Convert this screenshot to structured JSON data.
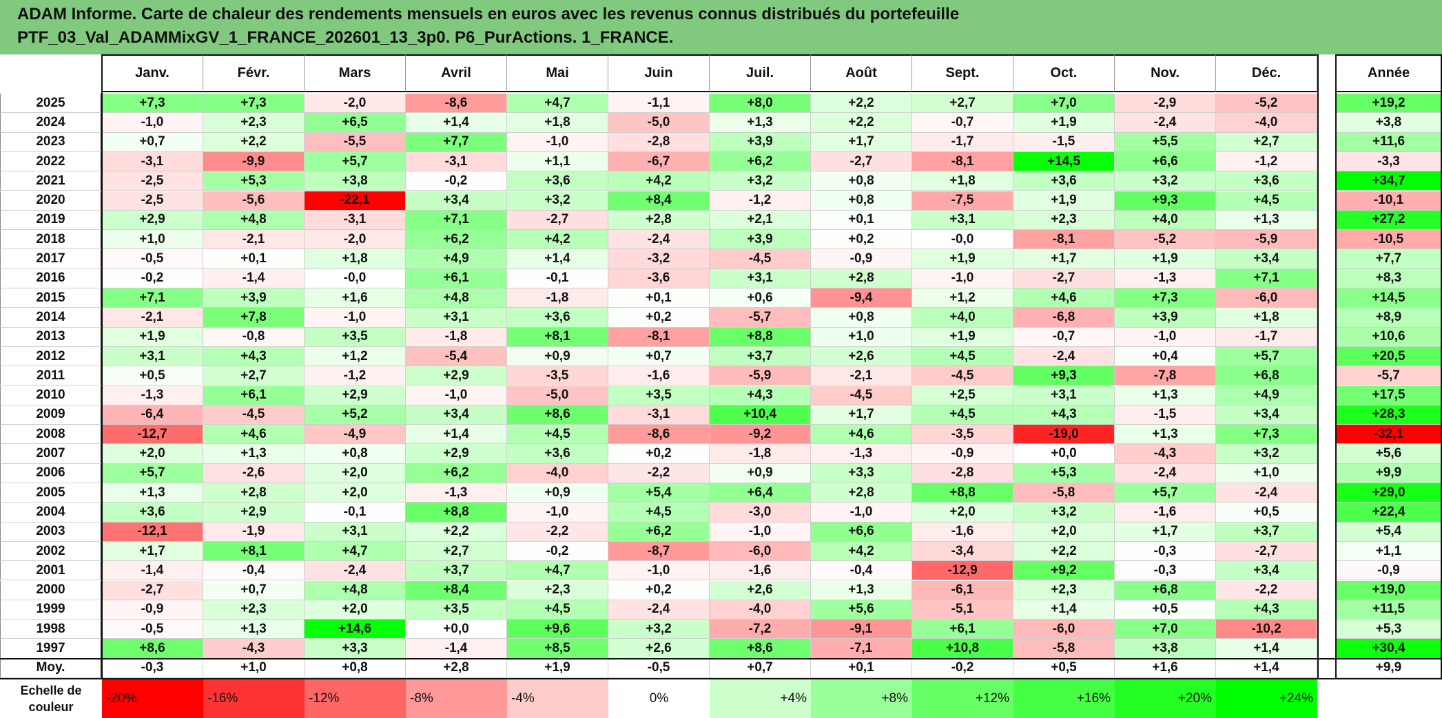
{
  "title": {
    "line1": "ADAM Informe. Carte de chaleur des rendements mensuels en euros avec les revenus connus distribués du portefeuille",
    "line2": "PTF_03_Val_ADAMMixGV_1_FRANCE_202601_13_3p0. P6_PurActions. 1_FRANCE."
  },
  "chart_data": {
    "type": "heatmap",
    "months": [
      "Janv.",
      "Févr.",
      "Mars",
      "Avril",
      "Mai",
      "Juin",
      "Juil.",
      "Août",
      "Sept.",
      "Oct.",
      "Nov.",
      "Déc."
    ],
    "year_header": "Année",
    "rows": [
      {
        "year": "2025",
        "m": [
          "+7,3",
          "+7,3",
          "-2,0",
          "-8,6",
          "+4,7",
          "-1,1",
          "+8,0",
          "+2,2",
          "+2,7",
          "+7,0",
          "-2,9",
          "-5,2"
        ],
        "total": "+19,2"
      },
      {
        "year": "2024",
        "m": [
          "-1,0",
          "+2,3",
          "+6,5",
          "+1,4",
          "+1,8",
          "-5,0",
          "+1,3",
          "+2,2",
          "-0,7",
          "+1,9",
          "-2,4",
          "-4,0"
        ],
        "total": "+3,8"
      },
      {
        "year": "2023",
        "m": [
          "+0,7",
          "+2,2",
          "-5,5",
          "+7,7",
          "-1,0",
          "-2,8",
          "+3,9",
          "+1,7",
          "-1,7",
          "-1,5",
          "+5,5",
          "+2,7"
        ],
        "total": "+11,6"
      },
      {
        "year": "2022",
        "m": [
          "-3,1",
          "-9,9",
          "+5,7",
          "-3,1",
          "+1,1",
          "-6,7",
          "+6,2",
          "-2,7",
          "-8,1",
          "+14,5",
          "+6,6",
          "-1,2"
        ],
        "total": "-3,3"
      },
      {
        "year": "2021",
        "m": [
          "-2,5",
          "+5,3",
          "+3,8",
          "-0,2",
          "+3,6",
          "+4,2",
          "+3,2",
          "+0,8",
          "+1,8",
          "+3,6",
          "+3,2",
          "+3,6"
        ],
        "total": "+34,7"
      },
      {
        "year": "2020",
        "m": [
          "-2,5",
          "-5,6",
          "-22,1",
          "+3,4",
          "+3,2",
          "+8,4",
          "-1,2",
          "+0,8",
          "-7,5",
          "+1,9",
          "+9,3",
          "+4,5"
        ],
        "total": "-10,1"
      },
      {
        "year": "2019",
        "m": [
          "+2,9",
          "+4,8",
          "-3,1",
          "+7,1",
          "-2,7",
          "+2,8",
          "+2,1",
          "+0,1",
          "+3,1",
          "+2,3",
          "+4,0",
          "+1,3"
        ],
        "total": "+27,2"
      },
      {
        "year": "2018",
        "m": [
          "+1,0",
          "-2,1",
          "-2,0",
          "+6,2",
          "+4,2",
          "-2,4",
          "+3,9",
          "+0,2",
          "-0,0",
          "-8,1",
          "-5,2",
          "-5,9"
        ],
        "total": "-10,5"
      },
      {
        "year": "2017",
        "m": [
          "-0,5",
          "+0,1",
          "+1,8",
          "+4,9",
          "+1,4",
          "-3,2",
          "-4,5",
          "-0,9",
          "+1,9",
          "+1,7",
          "+1,9",
          "+3,4"
        ],
        "total": "+7,7"
      },
      {
        "year": "2016",
        "m": [
          "-0,2",
          "-1,4",
          "-0,0",
          "+6,1",
          "-0,1",
          "-3,6",
          "+3,1",
          "+2,8",
          "-1,0",
          "-2,7",
          "-1,3",
          "+7,1"
        ],
        "total": "+8,3"
      },
      {
        "year": "2015",
        "m": [
          "+7,1",
          "+3,9",
          "+1,6",
          "+4,8",
          "-1,8",
          "+0,1",
          "+0,6",
          "-9,4",
          "+1,2",
          "+4,6",
          "+7,3",
          "-6,0"
        ],
        "total": "+14,5"
      },
      {
        "year": "2014",
        "m": [
          "-2,1",
          "+7,8",
          "-1,0",
          "+3,1",
          "+3,6",
          "+0,2",
          "-5,7",
          "+0,8",
          "+4,0",
          "-6,8",
          "+3,9",
          "+1,8"
        ],
        "total": "+8,9"
      },
      {
        "year": "2013",
        "m": [
          "+1,9",
          "-0,8",
          "+3,5",
          "-1,8",
          "+8,1",
          "-8,1",
          "+8,8",
          "+1,0",
          "+1,9",
          "-0,7",
          "-1,0",
          "-1,7"
        ],
        "total": "+10,6"
      },
      {
        "year": "2012",
        "m": [
          "+3,1",
          "+4,3",
          "+1,2",
          "-5,4",
          "+0,9",
          "+0,7",
          "+3,7",
          "+2,6",
          "+4,5",
          "-2,4",
          "+0,4",
          "+5,7"
        ],
        "total": "+20,5"
      },
      {
        "year": "2011",
        "m": [
          "+0,5",
          "+2,7",
          "-1,2",
          "+2,9",
          "-3,5",
          "-1,6",
          "-5,9",
          "-2,1",
          "-4,5",
          "+9,3",
          "-7,8",
          "+6,8"
        ],
        "total": "-5,7"
      },
      {
        "year": "2010",
        "m": [
          "-1,3",
          "+6,1",
          "+2,9",
          "-1,0",
          "-5,0",
          "+3,5",
          "+4,3",
          "-4,5",
          "+2,5",
          "+3,1",
          "+1,3",
          "+4,9"
        ],
        "total": "+17,5"
      },
      {
        "year": "2009",
        "m": [
          "-6,4",
          "-4,5",
          "+5,2",
          "+3,4",
          "+8,6",
          "-3,1",
          "+10,4",
          "+1,7",
          "+4,5",
          "+4,3",
          "-1,5",
          "+3,4"
        ],
        "total": "+28,3"
      },
      {
        "year": "2008",
        "m": [
          "-12,7",
          "+4,6",
          "-4,9",
          "+1,4",
          "+4,5",
          "-8,6",
          "-9,2",
          "+4,6",
          "-3,5",
          "-19,0",
          "+1,3",
          "+7,3"
        ],
        "total": "-32,1"
      },
      {
        "year": "2007",
        "m": [
          "+2,0",
          "+1,3",
          "+0,8",
          "+2,9",
          "+3,6",
          "+0,2",
          "-1,8",
          "-1,3",
          "-0,9",
          "+0,0",
          "-4,3",
          "+3,2"
        ],
        "total": "+5,6"
      },
      {
        "year": "2006",
        "m": [
          "+5,7",
          "-2,6",
          "+2,0",
          "+6,2",
          "-4,0",
          "-2,2",
          "+0,9",
          "+3,3",
          "-2,8",
          "+5,3",
          "-2,4",
          "+1,0"
        ],
        "total": "+9,9"
      },
      {
        "year": "2005",
        "m": [
          "+1,3",
          "+2,8",
          "+2,0",
          "-1,3",
          "+0,9",
          "+5,4",
          "+6,4",
          "+2,8",
          "+8,8",
          "-5,8",
          "+5,7",
          "-2,4"
        ],
        "total": "+29,0"
      },
      {
        "year": "2004",
        "m": [
          "+3,6",
          "+2,9",
          "-0,1",
          "+8,8",
          "-1,0",
          "+4,5",
          "-3,0",
          "-1,0",
          "+2,0",
          "+3,2",
          "-1,6",
          "+0,5"
        ],
        "total": "+22,4"
      },
      {
        "year": "2003",
        "m": [
          "-12,1",
          "-1,9",
          "+3,1",
          "+2,2",
          "-2,2",
          "+6,2",
          "-1,0",
          "+6,6",
          "-1,6",
          "+2,0",
          "+1,7",
          "+3,7"
        ],
        "total": "+5,4"
      },
      {
        "year": "2002",
        "m": [
          "+1,7",
          "+8,1",
          "+4,7",
          "+2,7",
          "-0,2",
          "-8,7",
          "-6,0",
          "+4,2",
          "-3,4",
          "+2,2",
          "-0,3",
          "-2,7"
        ],
        "total": "+1,1"
      },
      {
        "year": "2001",
        "m": [
          "-1,4",
          "-0,4",
          "-2,4",
          "+3,7",
          "+4,7",
          "-1,0",
          "-1,6",
          "-0,4",
          "-12,9",
          "+9,2",
          "-0,3",
          "+3,4"
        ],
        "total": "-0,9"
      },
      {
        "year": "2000",
        "m": [
          "-2,7",
          "+0,7",
          "+4,8",
          "+8,4",
          "+2,3",
          "+0,2",
          "+2,6",
          "+1,3",
          "-6,1",
          "+2,3",
          "+6,8",
          "-2,2"
        ],
        "total": "+19,0"
      },
      {
        "year": "1999",
        "m": [
          "-0,9",
          "+2,3",
          "+2,0",
          "+3,5",
          "+4,5",
          "-2,4",
          "-4,0",
          "+5,6",
          "-5,1",
          "+1,4",
          "+0,5",
          "+4,3"
        ],
        "total": "+11,5"
      },
      {
        "year": "1998",
        "m": [
          "-0,5",
          "+1,3",
          "+14,6",
          "+0,0",
          "+9,6",
          "+3,2",
          "-7,2",
          "-9,1",
          "+6,1",
          "-6,0",
          "+7,0",
          "-10,2"
        ],
        "total": "+5,3"
      },
      {
        "year": "1997",
        "m": [
          "+8,6",
          "-4,3",
          "+3,3",
          "-1,4",
          "+8,5",
          "+2,6",
          "+8,6",
          "-7,1",
          "+10,8",
          "-5,8",
          "+3,8",
          "+1,4"
        ],
        "total": "+30,4"
      }
    ],
    "average": {
      "label": "Moy.",
      "m": [
        "-0,3",
        "+1,0",
        "+0,8",
        "+2,8",
        "+1,9",
        "-0,5",
        "+0,7",
        "+0,1",
        "-0,2",
        "+0,5",
        "+1,6",
        "+1,4"
      ],
      "total": "+9,9"
    },
    "scale": {
      "label_line1": "Echelle de",
      "label_line2": "couleur",
      "steps": [
        {
          "label": "-20%",
          "color": "#ff0000"
        },
        {
          "label": "-16%",
          "color": "#ff3333"
        },
        {
          "label": "-12%",
          "color": "#ff6666"
        },
        {
          "label": "-8%",
          "color": "#ff9999"
        },
        {
          "label": "-4%",
          "color": "#ffcccc"
        },
        {
          "label": "0%",
          "color": "#ffffff"
        },
        {
          "label": "+4%",
          "color": "#ccffcc"
        },
        {
          "label": "+8%",
          "color": "#99ff99"
        },
        {
          "label": "+12%",
          "color": "#66ff66"
        },
        {
          "label": "+16%",
          "color": "#44ff44"
        },
        {
          "label": "+20%",
          "color": "#22ff22"
        },
        {
          "label": "+24%",
          "color": "#00ff00"
        }
      ]
    }
  }
}
